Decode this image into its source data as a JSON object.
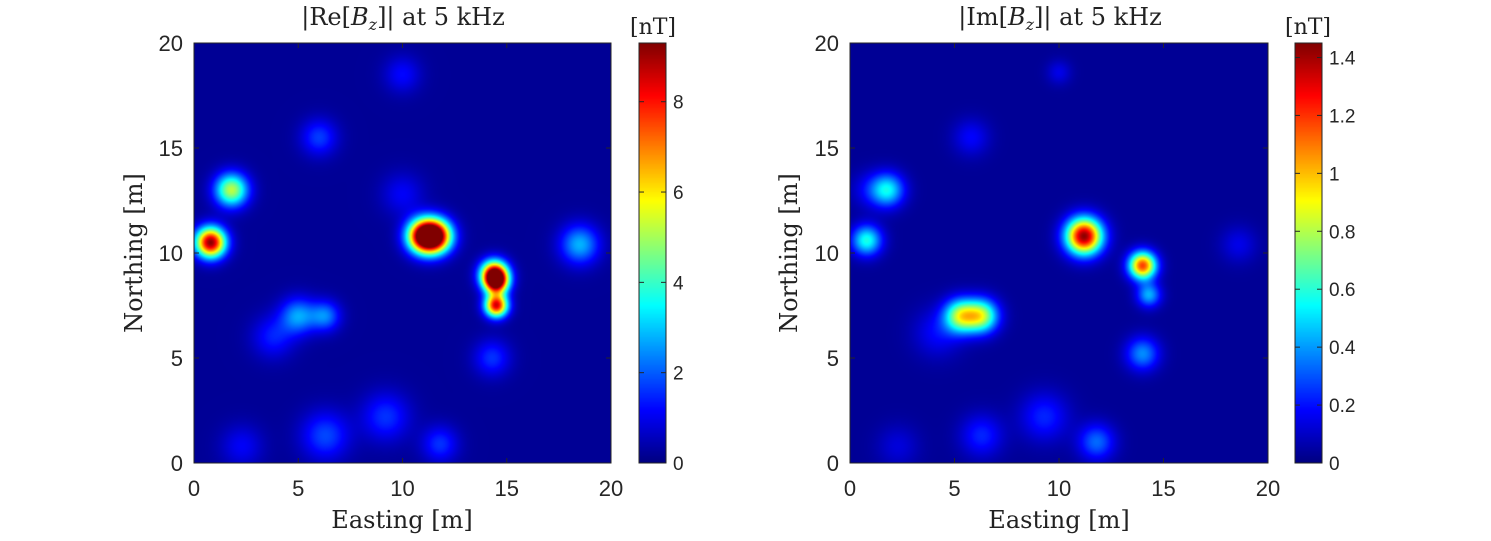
{
  "chart_data": [
    {
      "type": "heatmap",
      "title": "|Re[B_z]| at 5 kHz",
      "title_parts": {
        "open": "|Re[",
        "var": "B",
        "sub": "z",
        "close": "]| at 5 kHz"
      },
      "xlabel": "Easting [m]",
      "ylabel": "Northing [m]",
      "xlim": [
        0,
        20
      ],
      "ylim": [
        0,
        20
      ],
      "xticks": [
        "0",
        "5",
        "10",
        "15",
        "20"
      ],
      "yticks": [
        "0",
        "5",
        "10",
        "15",
        "20"
      ],
      "colorbar": {
        "unit": "[nT]",
        "colormap": "jet",
        "range": [
          0,
          9.3
        ],
        "ticks": [
          "0",
          "2",
          "4",
          "6",
          "8"
        ],
        "tick_values": [
          0,
          2,
          4,
          6,
          8
        ]
      },
      "background_value": 0.2,
      "anomalies": [
        {
          "x": 0.8,
          "y": 10.5,
          "peak": 9.0,
          "sigma": 0.5
        },
        {
          "x": 1.8,
          "y": 13.0,
          "peak": 5.0,
          "sigma": 0.55
        },
        {
          "x": 11.0,
          "y": 10.8,
          "peak": 8.6,
          "sigma": 0.55
        },
        {
          "x": 11.6,
          "y": 10.8,
          "peak": 8.2,
          "sigma": 0.55
        },
        {
          "x": 14.4,
          "y": 9.0,
          "peak": 8.2,
          "sigma": 0.45
        },
        {
          "x": 14.5,
          "y": 8.6,
          "peak": 7.0,
          "sigma": 0.4
        },
        {
          "x": 14.5,
          "y": 7.5,
          "peak": 8.2,
          "sigma": 0.38
        },
        {
          "x": 14.3,
          "y": 5.0,
          "peak": 1.4,
          "sigma": 0.6
        },
        {
          "x": 18.5,
          "y": 10.4,
          "peak": 2.6,
          "sigma": 0.65
        },
        {
          "x": 5.0,
          "y": 7.0,
          "peak": 2.4,
          "sigma": 0.6
        },
        {
          "x": 6.3,
          "y": 7.0,
          "peak": 2.1,
          "sigma": 0.5
        },
        {
          "x": 3.8,
          "y": 6.0,
          "peak": 1.2,
          "sigma": 0.7
        },
        {
          "x": 6.0,
          "y": 15.5,
          "peak": 1.5,
          "sigma": 0.6
        },
        {
          "x": 10.0,
          "y": 18.5,
          "peak": 1.0,
          "sigma": 0.6
        },
        {
          "x": 10.0,
          "y": 12.8,
          "peak": 0.9,
          "sigma": 0.7
        },
        {
          "x": 6.3,
          "y": 1.3,
          "peak": 1.6,
          "sigma": 0.8
        },
        {
          "x": 9.2,
          "y": 2.2,
          "peak": 1.4,
          "sigma": 0.8
        },
        {
          "x": 11.8,
          "y": 0.9,
          "peak": 1.4,
          "sigma": 0.6
        },
        {
          "x": 2.3,
          "y": 0.8,
          "peak": 0.9,
          "sigma": 0.7
        }
      ]
    },
    {
      "type": "heatmap",
      "title": "|Im[B_z]| at 5 kHz",
      "title_parts": {
        "open": "|Im[",
        "var": "B",
        "sub": "z",
        "close": "]| at 5 kHz"
      },
      "xlabel": "Easting [m]",
      "ylabel": "Northing [m]",
      "xlim": [
        0,
        20
      ],
      "ylim": [
        0,
        20
      ],
      "xticks": [
        "0",
        "5",
        "10",
        "15",
        "20"
      ],
      "yticks": [
        "0",
        "5",
        "10",
        "15",
        "20"
      ],
      "colorbar": {
        "unit": "[nT]",
        "colormap": "jet",
        "range": [
          0,
          1.45
        ],
        "ticks": [
          "0",
          "0.2",
          "0.4",
          "0.6",
          "0.8",
          "1",
          "1.2",
          "1.4"
        ],
        "tick_values": [
          0,
          0.2,
          0.4,
          0.6,
          0.8,
          1.0,
          1.2,
          1.4
        ]
      },
      "background_value": 0.03,
      "anomalies": [
        {
          "x": 11.2,
          "y": 10.8,
          "peak": 1.4,
          "sigma": 0.6
        },
        {
          "x": 14.0,
          "y": 9.4,
          "peak": 1.15,
          "sigma": 0.45
        },
        {
          "x": 14.3,
          "y": 8.0,
          "peak": 0.4,
          "sigma": 0.4
        },
        {
          "x": 14.0,
          "y": 5.2,
          "peak": 0.35,
          "sigma": 0.55
        },
        {
          "x": 5.3,
          "y": 7.0,
          "peak": 0.75,
          "sigma": 0.55
        },
        {
          "x": 6.3,
          "y": 7.0,
          "peak": 0.75,
          "sigma": 0.55
        },
        {
          "x": 4.2,
          "y": 6.2,
          "peak": 0.15,
          "sigma": 0.8
        },
        {
          "x": 1.8,
          "y": 13.0,
          "peak": 0.5,
          "sigma": 0.55
        },
        {
          "x": 0.8,
          "y": 10.6,
          "peak": 0.55,
          "sigma": 0.5
        },
        {
          "x": 0.9,
          "y": 13.0,
          "peak": 0.12,
          "sigma": 0.6
        },
        {
          "x": 5.8,
          "y": 15.5,
          "peak": 0.15,
          "sigma": 0.6
        },
        {
          "x": 10.0,
          "y": 18.6,
          "peak": 0.12,
          "sigma": 0.4
        },
        {
          "x": 18.6,
          "y": 10.4,
          "peak": 0.12,
          "sigma": 0.6
        },
        {
          "x": 11.8,
          "y": 1.0,
          "peak": 0.3,
          "sigma": 0.6
        },
        {
          "x": 9.3,
          "y": 2.2,
          "peak": 0.2,
          "sigma": 0.8
        },
        {
          "x": 6.3,
          "y": 1.3,
          "peak": 0.2,
          "sigma": 0.7
        },
        {
          "x": 2.3,
          "y": 0.8,
          "peak": 0.1,
          "sigma": 0.7
        }
      ]
    }
  ]
}
